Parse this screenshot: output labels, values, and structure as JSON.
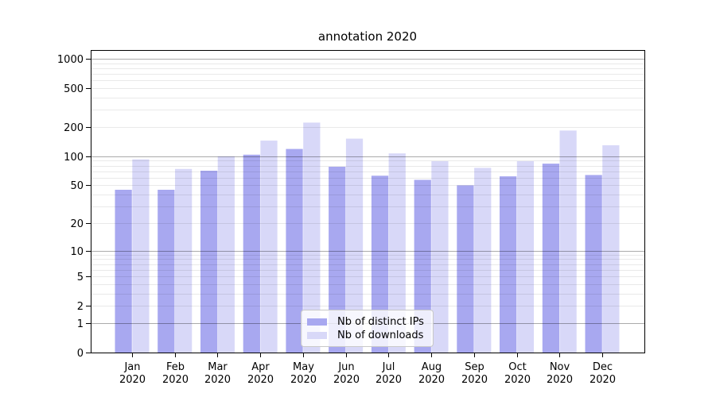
{
  "title": "annotation 2020",
  "palette": {
    "bar_distinct_ips": "#a8a8f0",
    "bar_downloads": "#d8d8f8",
    "grid_major_hex": "#ababab",
    "grid_minor_hex": "#e8e8e8",
    "axis": "#000000",
    "legend_border": "#c8c8c8",
    "background": "#ffffff"
  },
  "axes": {
    "y_ticks": [
      0,
      1,
      2,
      5,
      10,
      20,
      50,
      100,
      200,
      500,
      1000
    ],
    "y_major_gridlines": [
      1,
      10,
      100,
      1000
    ],
    "x_tick_months": [
      "Jan",
      "Feb",
      "Mar",
      "Apr",
      "May",
      "Jun",
      "Jul",
      "Aug",
      "Sep",
      "Oct",
      "Nov",
      "Dec"
    ],
    "x_tick_year": "2020"
  },
  "chart_data": {
    "type": "bar",
    "title": "annotation 2020",
    "categories": [
      "Jan 2020",
      "Feb 2020",
      "Mar 2020",
      "Apr 2020",
      "May 2020",
      "Jun 2020",
      "Jul 2020",
      "Aug 2020",
      "Sep 2020",
      "Oct 2020",
      "Nov 2020",
      "Dec 2020"
    ],
    "series": [
      {
        "name": "Nb of distinct IPs",
        "color": "#a8a8f0",
        "values": [
          45,
          45,
          71,
          104,
          119,
          78,
          63,
          57,
          50,
          62,
          84,
          64
        ]
      },
      {
        "name": "Nb of downloads",
        "color": "#d8d8f8",
        "values": [
          93,
          74,
          100,
          145,
          222,
          152,
          107,
          89,
          76,
          89,
          184,
          130
        ]
      }
    ],
    "xlabel": "",
    "ylabel": "",
    "yscale": "log10(value+1)",
    "ylim": [
      0,
      1230
    ],
    "grid": true,
    "legend_position": "inside-bottom-center"
  }
}
